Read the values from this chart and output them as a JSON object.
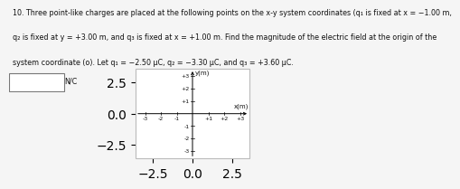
{
  "line1": "10. Three point-like charges are placed at the following points on the x-y system coordinates (q₁ is fixed at x = −1.00 m,",
  "line2": "q₂ is fixed at y = +3.00 m, and q₃ is fixed at x = +1.00 m. Find the magnitude of the electric field at the origin of the",
  "line3": "system coordinate (o). Let q₁ = −2.50 μC, q₂ = −3.30 μC, and q₃ = +3.60 μC.",
  "unit_label": "N/C",
  "xlabel": "x(m)",
  "ylabel": "y(m)",
  "xlim": [
    -3.6,
    3.6
  ],
  "ylim": [
    -3.6,
    3.6
  ],
  "xticks": [
    -3,
    -2,
    -1,
    1,
    2,
    3
  ],
  "yticks": [
    -3,
    -2,
    -1,
    1,
    2,
    3
  ],
  "background_color": "#f5f5f5",
  "graph_bg": "#ffffff",
  "text_color": "#111111",
  "border_color": "#aaaaaa",
  "title_fontsize": 5.8,
  "tick_fontsize": 4.5,
  "axis_label_fontsize": 5.0
}
